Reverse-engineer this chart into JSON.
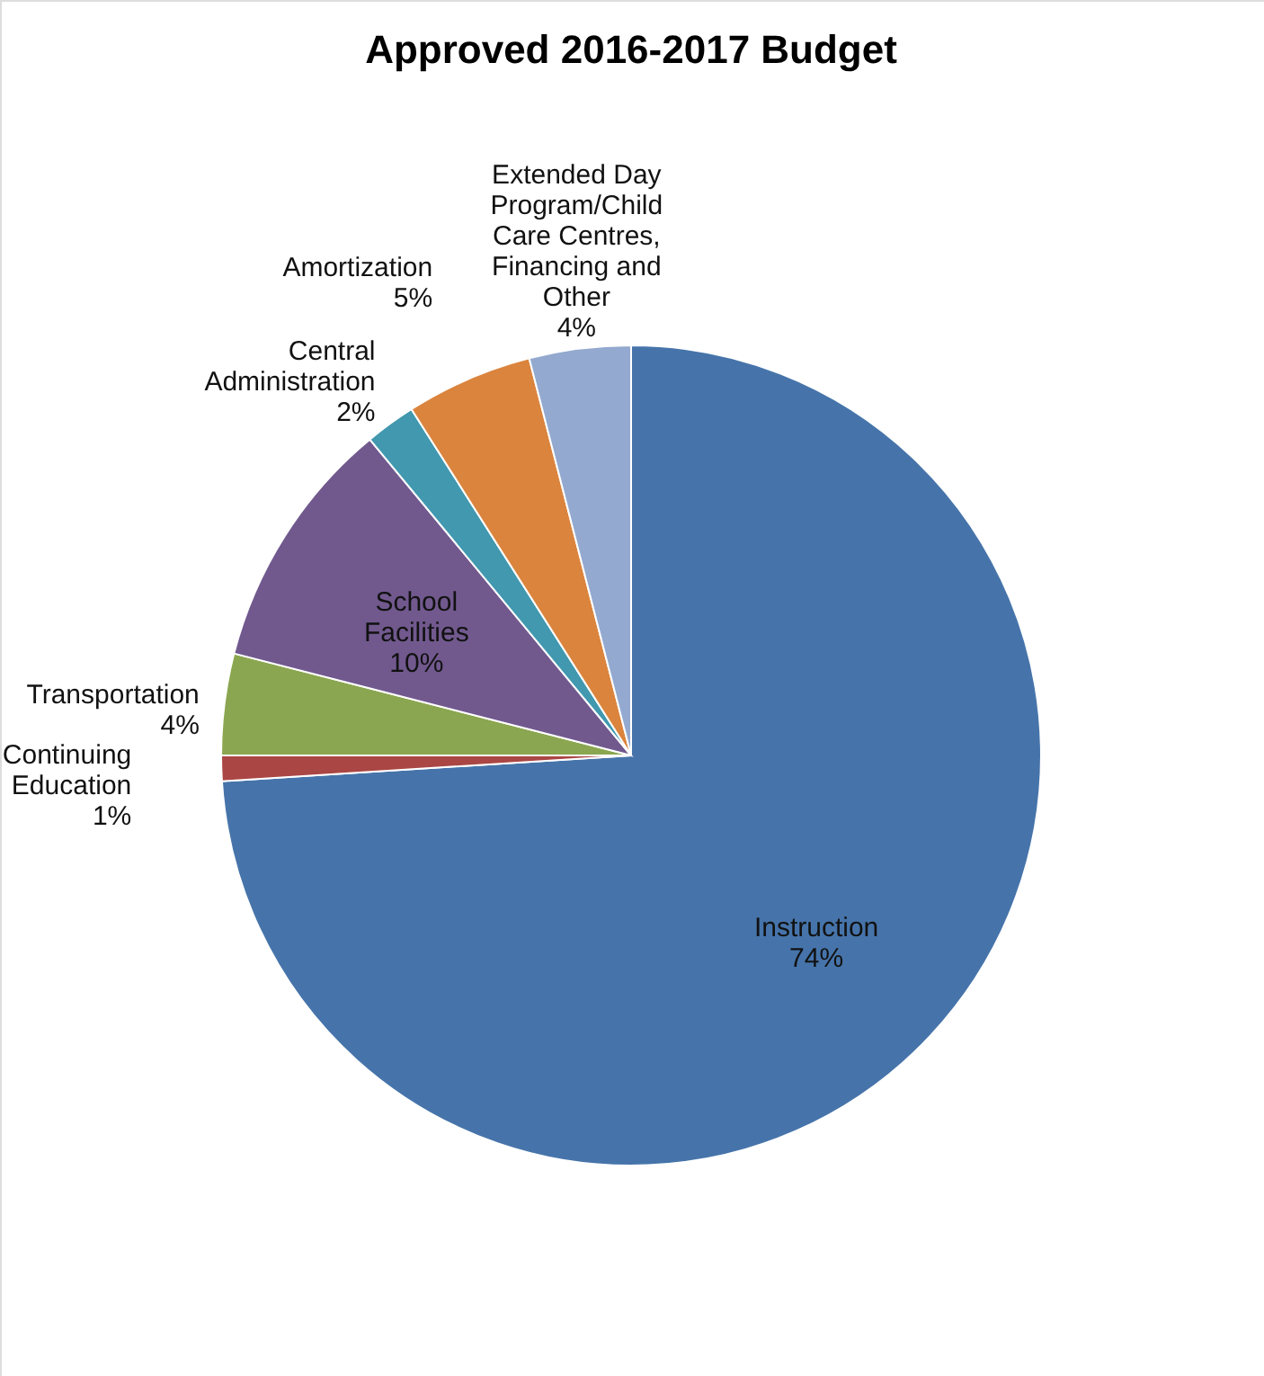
{
  "chart_data": {
    "type": "pie",
    "title": "Approved 2016-2017 Budget",
    "categories": [
      "Instruction",
      "Continuing Education",
      "Transportation",
      "School Facilities",
      "Central Administration",
      "Amortization",
      "Extended Day Program/Child Care Centres, Financing and Other"
    ],
    "values": [
      74,
      1,
      4,
      10,
      2,
      5,
      4
    ],
    "value_labels": [
      "74%",
      "1%",
      "4%",
      "10%",
      "2%",
      "5%",
      "4%"
    ],
    "colors": [
      "#4674aa",
      "#aa4644",
      "#8ba650",
      "#71598e",
      "#4198af",
      "#db843d",
      "#93a9cf"
    ]
  }
}
